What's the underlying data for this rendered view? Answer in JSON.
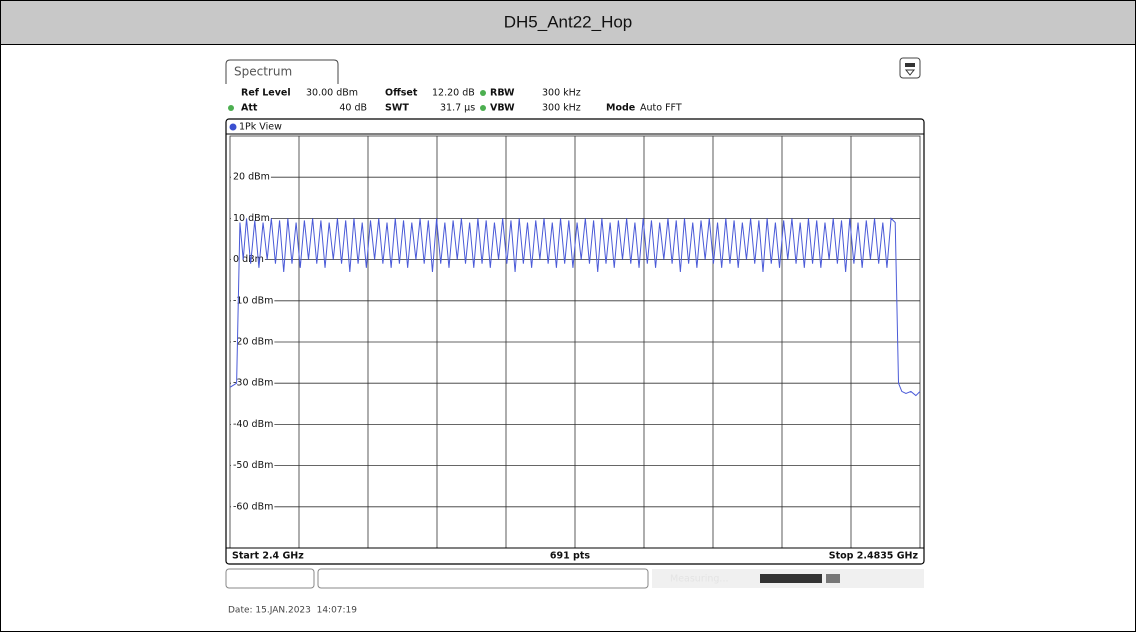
{
  "header": {
    "title": "DH5_Ant22_Hop"
  },
  "instrument": {
    "tab": "Spectrum",
    "view": "1Pk View",
    "settings": [
      {
        "label": "Ref Level",
        "value": "30.00 dBm"
      },
      {
        "label": "Offset",
        "value": "12.20 dB"
      },
      {
        "label": "RBW",
        "value": "300 kHz"
      },
      {
        "label": "Att",
        "value": "40 dB"
      },
      {
        "label": "SWT",
        "value": "31.7 µs"
      },
      {
        "label": "VBW",
        "value": "300 kHz"
      },
      {
        "label": "Mode",
        "value": "Auto FFT"
      }
    ],
    "status": "Measuring..."
  },
  "chart_data": {
    "type": "line",
    "color": "#4a5ad8",
    "grid": true,
    "xlim": [
      2.4,
      2.4835
    ],
    "ylim": [
      -70,
      30
    ],
    "xticks": [
      2.40835,
      2.4167,
      2.42505,
      2.4334,
      2.44175,
      2.4501,
      2.45845,
      2.4668,
      2.47515
    ],
    "yticks": [
      {
        "value": 20,
        "label": "20 dBm"
      },
      {
        "value": 10,
        "label": "10 dBm"
      },
      {
        "value": 0,
        "label": "0 dBm"
      },
      {
        "value": -10,
        "label": "-10 dBm"
      },
      {
        "value": -20,
        "label": "-20 dBm"
      },
      {
        "value": -30,
        "label": "-30 dBm"
      },
      {
        "value": -40,
        "label": "-40 dBm"
      },
      {
        "value": -50,
        "label": "-50 dBm"
      },
      {
        "value": -60,
        "label": "-60 dBm"
      }
    ],
    "start_label": "Start 2.4 GHz",
    "points_label": "691 pts",
    "stop_label": "Stop 2.4835 GHz",
    "x": [
      2.4,
      2.4008,
      2.4012,
      2.4016,
      2.402,
      2.4025,
      2.403,
      2.4035,
      2.404,
      2.4045,
      2.405,
      2.4055,
      2.406,
      2.4065,
      2.407,
      2.4075,
      2.408,
      2.4085,
      2.409,
      2.4095,
      2.41,
      2.4105,
      2.411,
      2.4115,
      2.412,
      2.4125,
      2.413,
      2.4135,
      2.414,
      2.4145,
      2.415,
      2.4155,
      2.416,
      2.4165,
      2.417,
      2.4175,
      2.418,
      2.4185,
      2.419,
      2.4195,
      2.42,
      2.4205,
      2.421,
      2.4215,
      2.422,
      2.4225,
      2.423,
      2.4235,
      2.424,
      2.4245,
      2.425,
      2.4255,
      2.426,
      2.4265,
      2.427,
      2.4275,
      2.428,
      2.4285,
      2.429,
      2.4295,
      2.43,
      2.4305,
      2.431,
      2.4315,
      2.432,
      2.4325,
      2.433,
      2.4335,
      2.434,
      2.4345,
      2.435,
      2.4355,
      2.436,
      2.4365,
      2.437,
      2.4375,
      2.438,
      2.4385,
      2.439,
      2.4395,
      2.44,
      2.4405,
      2.441,
      2.4415,
      2.442,
      2.4425,
      2.443,
      2.4435,
      2.444,
      2.4445,
      2.445,
      2.4455,
      2.446,
      2.4465,
      2.447,
      2.4475,
      2.448,
      2.4485,
      2.449,
      2.4495,
      2.45,
      2.4505,
      2.451,
      2.4515,
      2.452,
      2.4525,
      2.453,
      2.4535,
      2.454,
      2.4545,
      2.455,
      2.4555,
      2.456,
      2.4565,
      2.457,
      2.4575,
      2.458,
      2.4585,
      2.459,
      2.4595,
      2.46,
      2.4605,
      2.461,
      2.4615,
      2.462,
      2.4625,
      2.463,
      2.4635,
      2.464,
      2.4645,
      2.465,
      2.4655,
      2.466,
      2.4665,
      2.467,
      2.4675,
      2.468,
      2.4685,
      2.469,
      2.4695,
      2.47,
      2.4705,
      2.471,
      2.4715,
      2.472,
      2.4725,
      2.473,
      2.4735,
      2.474,
      2.4745,
      2.475,
      2.4755,
      2.476,
      2.4765,
      2.477,
      2.4775,
      2.478,
      2.4785,
      2.479,
      2.4795,
      2.48,
      2.4805,
      2.4809,
      2.4813,
      2.4818,
      2.4824,
      2.483,
      2.4835
    ],
    "values": [
      -31,
      -30,
      9,
      0,
      10,
      -1,
      9.5,
      -2,
      9,
      0,
      10,
      -1,
      9.5,
      -3,
      10,
      -1,
      9,
      -2,
      9.5,
      0,
      10,
      -1,
      9.5,
      -2,
      9,
      0,
      10,
      -1,
      9.5,
      -3,
      10,
      -1,
      9,
      -2,
      9.5,
      0,
      10,
      -1,
      9,
      -2,
      10,
      -1,
      9.5,
      -2,
      9,
      0,
      10,
      -1,
      9.5,
      -3,
      10,
      -1,
      9,
      -2,
      9.5,
      0,
      10,
      -1,
      9,
      -2,
      10,
      -1,
      9.5,
      -2,
      9,
      0,
      10,
      -1,
      9.5,
      -3,
      10,
      -1,
      9,
      -2,
      9.5,
      0,
      10,
      -1,
      9,
      -2,
      10,
      -1,
      9.5,
      -2,
      9,
      0,
      10,
      -1,
      9.5,
      -3,
      10,
      -1,
      9,
      -2,
      9.5,
      0,
      10,
      -1,
      9,
      -2,
      10,
      -1,
      9.5,
      -2,
      9,
      0,
      10,
      -1,
      9.5,
      -3,
      10,
      -1,
      9,
      -2,
      9.5,
      0,
      10,
      -1,
      9,
      -2,
      10,
      -1,
      9.5,
      -2,
      9,
      0,
      10,
      -1,
      9.5,
      -3,
      10,
      -1,
      9,
      -2,
      9.5,
      0,
      10,
      -1,
      9,
      -2,
      10,
      -1,
      9.5,
      -2,
      9,
      0,
      10,
      -1,
      9.5,
      -3,
      10,
      -1,
      9,
      -2,
      9.5,
      0,
      10,
      -1,
      9,
      -2,
      10,
      9,
      -30,
      -32,
      -32.5,
      -32,
      -33,
      -32
    ]
  },
  "date": "Date: 15.JAN.2023  14:07:19"
}
